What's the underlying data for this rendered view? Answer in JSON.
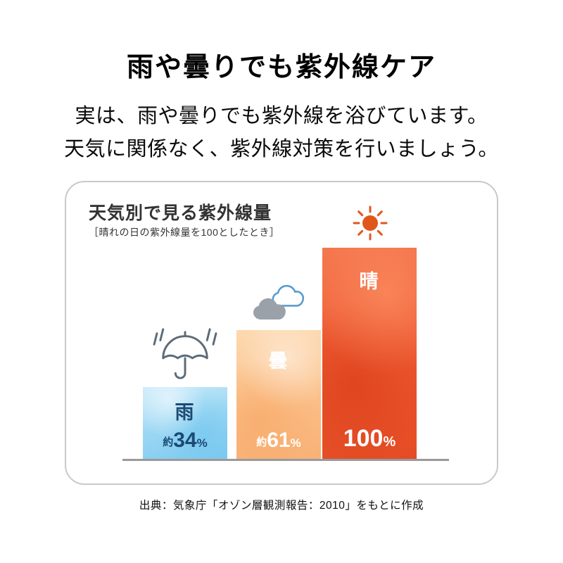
{
  "header": {
    "title": "雨や曇りでも紫外線ケア",
    "lead_line1": "実は、雨や曇りでも紫外線を浴びています。",
    "lead_line2": "天気に関係なく、紫外線対策を行いましょう。"
  },
  "chart_data": {
    "type": "bar",
    "title": "天気別で見る紫外線量",
    "note": "［晴れの日の紫外線量を100としたとき］",
    "categories": [
      "雨",
      "曇",
      "晴"
    ],
    "values": [
      34,
      61,
      100
    ],
    "ylim": [
      0,
      100
    ],
    "legend": "none",
    "grid": false,
    "bars": [
      {
        "label": "雨",
        "value": 34,
        "value_prefix": "約",
        "value_text": "34",
        "unit": "%",
        "icon": "umbrella-rain-icon",
        "bar_color": "#9fd9f4",
        "text_color": "#1b4a74"
      },
      {
        "label": "曇",
        "value": 61,
        "value_prefix": "約",
        "value_text": "61",
        "unit": "%",
        "icon": "clouds-icon",
        "bar_color": "#fbc28c",
        "text_color": "#ffffff"
      },
      {
        "label": "晴",
        "value": 100,
        "value_prefix": "",
        "value_text": "100",
        "unit": "%",
        "icon": "sun-icon",
        "bar_color": "#ee5a32",
        "text_color": "#ffffff"
      }
    ],
    "colors": {
      "sun_icon": "#e0571c",
      "umbrella_icon": "#5c6b77",
      "cloud_front": "#9aa1a8",
      "cloud_back_outline": "#5a9ccd",
      "baseline": "#9a9a9a"
    }
  },
  "footer": {
    "source": "出典：気象庁「オゾン層観測報告：2010」をもとに作成"
  }
}
